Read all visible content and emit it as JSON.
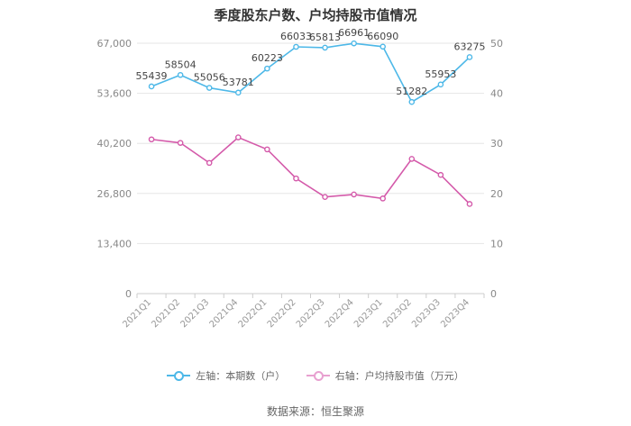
{
  "chart_data": {
    "type": "line",
    "title": "季度股东户数、户均持股市值情况",
    "categories": [
      "2021Q1",
      "2021Q2",
      "2021Q3",
      "2021Q4",
      "2022Q1",
      "2022Q2",
      "2022Q3",
      "2022Q4",
      "2023Q1",
      "2023Q2",
      "2023Q3",
      "2023Q4"
    ],
    "left_axis": {
      "ticks": [
        "0",
        "13,400",
        "26,800",
        "40,200",
        "53,600",
        "67,000"
      ],
      "ylim": [
        0,
        67000
      ]
    },
    "right_axis": {
      "ticks": [
        "0",
        "10",
        "20",
        "30",
        "40",
        "50"
      ],
      "ylim": [
        0,
        50
      ]
    },
    "series": [
      {
        "name": "左轴：本期数（户）",
        "axis": "left",
        "color": "#4db8e8",
        "values": [
          55439,
          58504,
          55056,
          53781,
          60223,
          66033,
          65813,
          66961,
          66090,
          51282,
          55953,
          63275
        ],
        "labels": [
          "55439",
          "58504",
          "55056",
          "53781",
          "60223",
          "66033",
          "65813",
          "66961",
          "66090",
          "51282",
          "55953",
          "63275"
        ]
      },
      {
        "name": "右轴：户均持股市值（万元）",
        "axis": "right",
        "color": "#d45aaa",
        "values": [
          30.8,
          30.1,
          26.1,
          31.2,
          28.8,
          23.0,
          19.3,
          19.8,
          19.0,
          26.9,
          23.7,
          17.9
        ]
      }
    ],
    "grid": true,
    "legend_position": "bottom"
  },
  "source": "数据来源：恒生聚源"
}
